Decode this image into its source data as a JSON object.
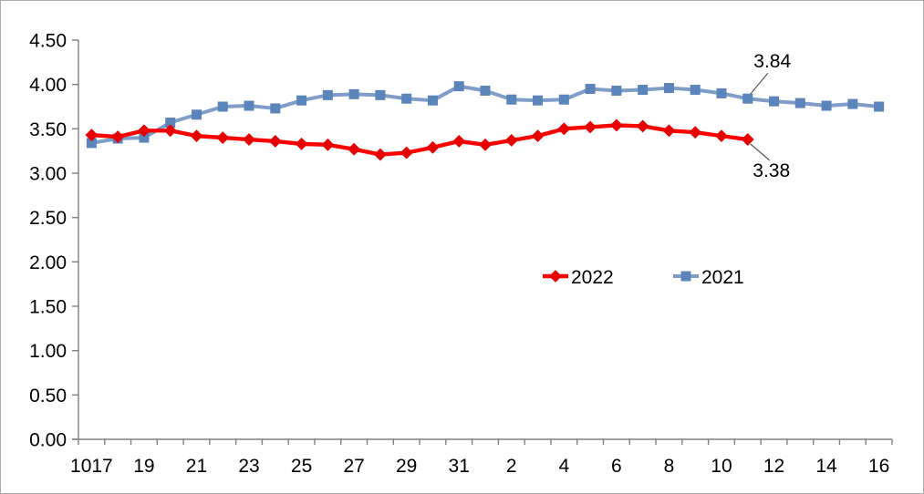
{
  "chart_data": {
    "type": "line",
    "title": "",
    "xlabel": "",
    "ylabel": "",
    "categories": [
      "1017",
      "",
      "19",
      "",
      "21",
      "",
      "23",
      "",
      "25",
      "",
      "27",
      "",
      "29",
      "",
      "31",
      "",
      "2",
      "",
      "4",
      "",
      "6",
      "",
      "8",
      "",
      "10",
      "",
      "12",
      "",
      "14",
      "",
      "16"
    ],
    "series": [
      {
        "name": "2022",
        "line_color": "#fe0000",
        "marker_color": "#e60000",
        "marker": "diamond",
        "values": [
          3.43,
          3.41,
          3.48,
          3.48,
          3.42,
          3.4,
          3.38,
          3.36,
          3.33,
          3.32,
          3.27,
          3.21,
          3.23,
          3.29,
          3.36,
          3.32,
          3.37,
          3.42,
          3.5,
          3.52,
          3.54,
          3.53,
          3.48,
          3.46,
          3.42,
          3.38,
          null,
          null,
          null,
          null,
          null
        ]
      },
      {
        "name": "2021",
        "line_color": "#7f9dc9",
        "marker_color": "#5b84ba",
        "marker": "square",
        "values": [
          3.34,
          3.39,
          3.4,
          3.57,
          3.66,
          3.75,
          3.76,
          3.73,
          3.82,
          3.88,
          3.89,
          3.88,
          3.84,
          3.82,
          3.98,
          3.93,
          3.83,
          3.82,
          3.83,
          3.95,
          3.93,
          3.94,
          3.96,
          3.94,
          3.9,
          3.84,
          3.81,
          3.79,
          3.76,
          3.78,
          3.75
        ]
      }
    ],
    "ylim": [
      0,
      4.5
    ],
    "y_tick_labels": [
      "0.00",
      "0.50",
      "1.00",
      "1.50",
      "2.00",
      "2.50",
      "3.00",
      "3.50",
      "4.00",
      "4.50"
    ],
    "grid": "off",
    "legend_position": "inside-middle-center",
    "axis_color": "#808080",
    "annotations": [
      {
        "text": "3.84",
        "series": "2021",
        "index": 25,
        "placement": "above"
      },
      {
        "text": "3.38",
        "series": "2022",
        "index": 25,
        "placement": "below"
      }
    ]
  }
}
